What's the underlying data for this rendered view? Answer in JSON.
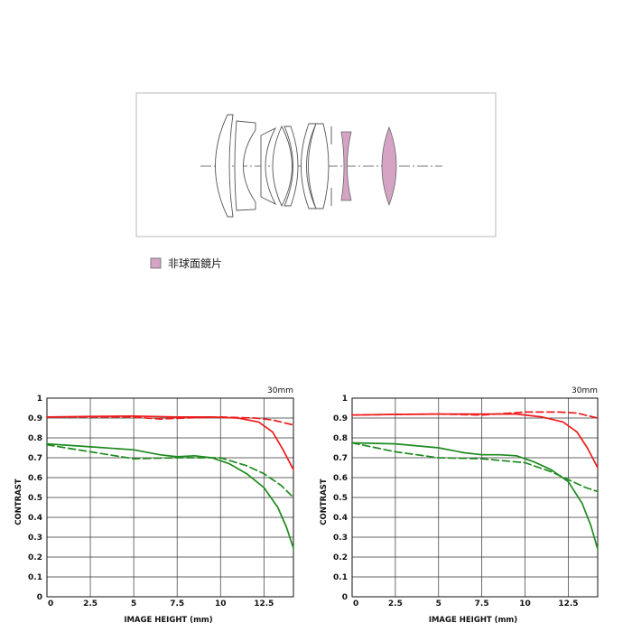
{
  "diagram": {
    "legend_label": "非球面鏡片",
    "legend_color": "#d5a4c4",
    "line_color": "#555555"
  },
  "colors": {
    "red": "#ee1c1c",
    "green": "#1e8a1e",
    "grid": "#333333"
  },
  "chart_data": [
    {
      "type": "line",
      "focal_label": "30mm",
      "xlabel": "IMAGE HEIGHT (mm)",
      "ylabel": "CONTRAST",
      "xlim": [
        0,
        14.2
      ],
      "ylim": [
        0,
        1
      ],
      "x_ticks": [
        "0",
        "2.5",
        "5",
        "7.5",
        "10",
        "12.5"
      ],
      "y_ticks": [
        "0",
        "0.1",
        "0.2",
        "0.3",
        "0.4",
        "0.5",
        "0.6",
        "0.7",
        "0.8",
        "0.9",
        "1"
      ],
      "series": [
        {
          "color": "red",
          "dash": false,
          "x": [
            0,
            2.5,
            5,
            7.5,
            9.5,
            11,
            12.2,
            13,
            13.6,
            14.2
          ],
          "y": [
            0.905,
            0.908,
            0.91,
            0.905,
            0.905,
            0.9,
            0.88,
            0.83,
            0.74,
            0.64
          ]
        },
        {
          "color": "red",
          "dash": true,
          "x": [
            0,
            2.5,
            5,
            6.5,
            8,
            10,
            12,
            13,
            14.2
          ],
          "y": [
            0.905,
            0.905,
            0.905,
            0.895,
            0.9,
            0.905,
            0.9,
            0.89,
            0.865
          ]
        },
        {
          "color": "green",
          "dash": false,
          "x": [
            0,
            2.5,
            5,
            6.5,
            7.5,
            8.5,
            9.5,
            10.5,
            11.5,
            12.5,
            13.3,
            13.8,
            14.2
          ],
          "y": [
            0.77,
            0.755,
            0.74,
            0.715,
            0.705,
            0.71,
            0.7,
            0.67,
            0.62,
            0.55,
            0.45,
            0.35,
            0.245
          ]
        },
        {
          "color": "green",
          "dash": true,
          "x": [
            0,
            2.5,
            5,
            7.5,
            10,
            11.5,
            12.5,
            13.5,
            14.2
          ],
          "y": [
            0.765,
            0.73,
            0.695,
            0.7,
            0.7,
            0.66,
            0.62,
            0.56,
            0.5
          ]
        }
      ]
    },
    {
      "type": "line",
      "focal_label": "30mm",
      "xlabel": "IMAGE HEIGHT (mm)",
      "ylabel": "CONTRAST",
      "xlim": [
        0,
        14.2
      ],
      "ylim": [
        0,
        1
      ],
      "x_ticks": [
        "0",
        "2.5",
        "5",
        "7.5",
        "10",
        "12.5"
      ],
      "y_ticks": [
        "0",
        "0.1",
        "0.2",
        "0.3",
        "0.4",
        "0.5",
        "0.6",
        "0.7",
        "0.8",
        "0.9",
        "1"
      ],
      "series": [
        {
          "color": "red",
          "dash": false,
          "x": [
            0,
            2.5,
            5,
            7.5,
            9.5,
            11,
            12.2,
            13,
            13.6,
            14.2
          ],
          "y": [
            0.915,
            0.918,
            0.92,
            0.92,
            0.92,
            0.905,
            0.88,
            0.83,
            0.75,
            0.65
          ]
        },
        {
          "color": "red",
          "dash": true,
          "x": [
            0,
            2.5,
            5,
            7.5,
            10,
            12,
            13,
            14.2
          ],
          "y": [
            0.915,
            0.918,
            0.92,
            0.915,
            0.93,
            0.93,
            0.925,
            0.9
          ]
        },
        {
          "color": "green",
          "dash": false,
          "x": [
            0,
            2.5,
            5,
            6.5,
            7.5,
            8.5,
            9.5,
            10.5,
            11.5,
            12.5,
            13.3,
            13.8,
            14.2
          ],
          "y": [
            0.775,
            0.77,
            0.75,
            0.725,
            0.715,
            0.715,
            0.71,
            0.68,
            0.64,
            0.58,
            0.47,
            0.36,
            0.24
          ]
        },
        {
          "color": "green",
          "dash": true,
          "x": [
            0,
            2.5,
            5,
            7.5,
            10,
            11.5,
            12.5,
            13.5,
            14.2
          ],
          "y": [
            0.775,
            0.73,
            0.7,
            0.695,
            0.675,
            0.63,
            0.59,
            0.55,
            0.53
          ]
        }
      ]
    }
  ]
}
